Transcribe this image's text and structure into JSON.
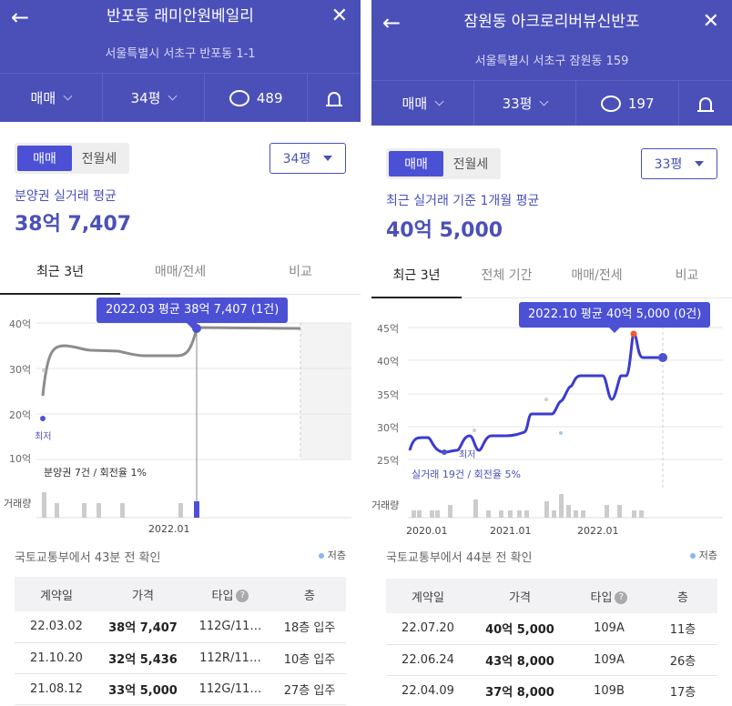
{
  "panels": [
    {
      "title": "반포동 래미안원베일리",
      "address": "서울특별시 서초구 반포동 1-1",
      "filters": {
        "trade_type": "매매",
        "size": "34평",
        "comments": "489"
      },
      "toggle": [
        "매매",
        "전월세"
      ],
      "size_select": "34평",
      "avg_label": "분양권 실거래 평균",
      "avg_value": "38억 7,407",
      "tabs": [
        "최근 3년",
        "매매/전세",
        "비교"
      ],
      "tooltip": "2022.03 평균 38억 7,407 (1건)",
      "y_ticks": [
        "40억",
        "30억",
        "20억",
        "10억"
      ],
      "x_ticks": [
        "2022.01"
      ],
      "min_label": "최저",
      "note": "분양권 7건 / 회전율 1%",
      "volume_label": "거래량",
      "source": "국토교통부에서 43분 전 확인",
      "legend": "저층",
      "table_headers": [
        "계약일",
        "가격",
        "타입",
        "층"
      ],
      "rows": [
        {
          "date": "22.03.02",
          "price": "38억 7,407",
          "type": "112G/11…",
          "floor": "18층 입주"
        },
        {
          "date": "21.10.20",
          "price": "32억 5,436",
          "type": "112R/11…",
          "floor": "10층 입주"
        },
        {
          "date": "21.08.12",
          "price": "33억 5,000",
          "type": "112G/11…",
          "floor": "27층 입주"
        }
      ]
    },
    {
      "title": "잠원동 아크로리버뷰신반포",
      "address": "서울특별시 서초구 잠원동 159",
      "filters": {
        "trade_type": "매매",
        "size": "33평",
        "comments": "197"
      },
      "toggle": [
        "매매",
        "전월세"
      ],
      "size_select": "33평",
      "avg_label": "최근 실거래 기준 1개월 평균",
      "avg_value": "40억 5,000",
      "tabs": [
        "최근 3년",
        "전체 기간",
        "매매/전세",
        "비교"
      ],
      "tooltip": "2022.10 평균 40억 5,000 (0건)",
      "y_ticks": [
        "45억",
        "40억",
        "35억",
        "30억",
        "25억"
      ],
      "x_ticks": [
        "2020.01",
        "2021.01",
        "2022.01"
      ],
      "min_label": "최저",
      "note": "실거래 19건 / 회전율 5%",
      "volume_label": "거래량",
      "source": "국토교통부에서 44분 전 확인",
      "legend": "저층",
      "table_headers": [
        "계약일",
        "가격",
        "타입",
        "층"
      ],
      "rows": [
        {
          "date": "22.07.20",
          "price": "40억 5,000",
          "type": "109A",
          "floor": "11층"
        },
        {
          "date": "22.06.24",
          "price": "43억 8,000",
          "type": "109A",
          "floor": "26층"
        },
        {
          "date": "22.04.09",
          "price": "37억 8,000",
          "type": "109B",
          "floor": "17층"
        }
      ]
    }
  ],
  "colors": {
    "header": "#4b50b9",
    "accent": "#4b50d5",
    "line_left": "#8c8c8c",
    "line_right": "#3b3bd1",
    "max_point": "#f05a28"
  }
}
